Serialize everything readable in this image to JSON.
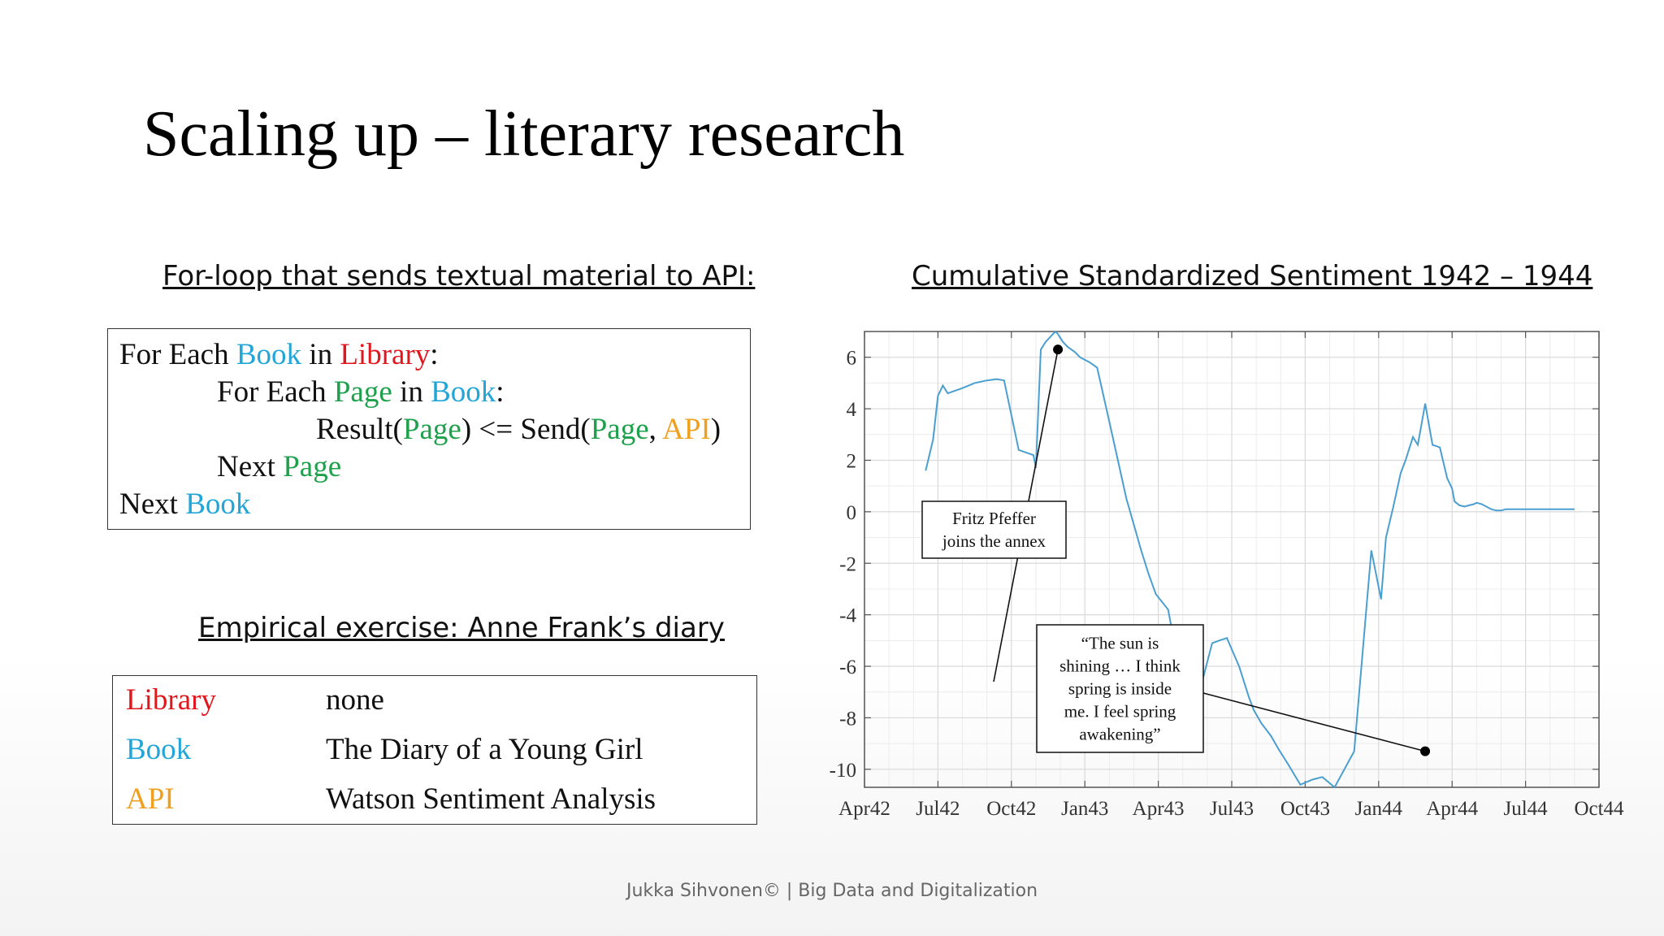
{
  "slide": {
    "title": "Scaling up – literary research",
    "footer": "Jukka Sihvonen© | Big Data and Digitalization"
  },
  "code_section": {
    "heading": "For-loop that sends textual material to API:",
    "line1": {
      "a": "For Each ",
      "b": "Book",
      "c": " in ",
      "d": "Library",
      "e": ":"
    },
    "line2": {
      "a": "For Each ",
      "b": "Page",
      "c": " in ",
      "d": "Book",
      "e": ":"
    },
    "line3": {
      "a": "Result(",
      "b": "Page",
      "c": ") <= Send(",
      "d": "Page",
      "e": ", ",
      "f": "API",
      "g": ")"
    },
    "line4": {
      "a": "Next ",
      "b": "Page"
    },
    "line5": {
      "a": "Next ",
      "b": "Book"
    }
  },
  "exercise_section": {
    "heading": "Empirical exercise: Anne Frank’s diary",
    "rows": [
      {
        "key": "Library",
        "value": "none",
        "color": "#e0171d"
      },
      {
        "key": "Book",
        "value": "The Diary of a Young Girl",
        "color": "#22a6d8"
      },
      {
        "key": "API",
        "value": "Watson Sentiment Analysis",
        "color": "#f0a020"
      }
    ]
  },
  "colors": {
    "blue": "#22a6d8",
    "red": "#e0171d",
    "green": "#1fa04c",
    "orange": "#f0a020",
    "line": "#4a9fd0"
  },
  "chart_data": {
    "type": "line",
    "title": "Cumulative Standardized Sentiment 1942 – 1944",
    "xlabel": "",
    "ylabel": "",
    "x_ticks": [
      "Apr42",
      "Jul42",
      "Oct42",
      "Jan43",
      "Apr43",
      "Jul43",
      "Oct43",
      "Jan44",
      "Apr44",
      "Jul44",
      "Oct44"
    ],
    "x_tick_positions": [
      0,
      3,
      6,
      9,
      12,
      15,
      18,
      21,
      24,
      27,
      30
    ],
    "y_ticks": [
      6,
      4,
      2,
      0,
      -2,
      -4,
      -6,
      -8,
      -10
    ],
    "xlim": [
      0,
      30
    ],
    "ylim": [
      -10.7,
      7
    ],
    "grid": true,
    "series": [
      {
        "x": [
          2.5,
          2.8,
          3.0,
          3.2,
          3.4,
          4.0,
          4.5,
          5.0,
          5.4,
          5.7,
          6.3,
          6.9,
          7.0,
          7.2,
          7.4,
          7.6,
          7.8,
          7.9,
          8.1,
          8.3,
          8.6,
          8.8,
          9.2,
          9.5,
          10.0,
          10.7,
          11.0,
          11.3,
          11.6,
          11.9,
          12.4,
          13.0,
          13.6,
          14.2,
          14.5,
          14.8,
          15.3,
          15.7,
          15.9,
          16.2,
          16.6,
          16.9,
          17.3,
          17.8,
          18.3,
          18.7,
          19.2,
          20.0,
          20.7,
          21.1,
          21.3,
          21.6,
          21.9,
          22.1,
          22.4,
          22.6,
          22.9,
          23.2,
          23.5,
          23.8,
          24.0,
          24.1,
          24.3,
          24.5,
          24.7,
          24.9,
          25.0,
          25.2,
          25.4,
          25.6,
          25.8,
          26.0,
          26.2,
          26.4,
          26.6,
          26.8,
          27.0,
          27.2,
          27.5,
          27.8,
          28.0,
          28.3,
          28.6,
          29.0
        ],
        "y": [
          1.6,
          2.8,
          4.5,
          4.9,
          4.6,
          4.8,
          5.0,
          5.1,
          5.15,
          5.1,
          2.4,
          2.2,
          1.7,
          6.3,
          6.6,
          6.8,
          7.0,
          6.9,
          6.6,
          6.4,
          6.2,
          6.0,
          5.8,
          5.6,
          3.5,
          0.5,
          -0.5,
          -1.5,
          -2.4,
          -3.2,
          -3.8,
          -6.8,
          -7.3,
          -5.1,
          -5.0,
          -4.9,
          -6.0,
          -7.2,
          -7.7,
          -8.2,
          -8.7,
          -9.2,
          -9.8,
          -10.6,
          -10.4,
          -10.3,
          -10.7,
          -9.3,
          -1.5,
          -3.4,
          -1.0,
          0.2,
          1.5,
          2.0,
          2.9,
          2.6,
          4.2,
          2.6,
          2.5,
          1.3,
          0.9,
          0.4,
          0.25,
          0.2,
          0.25,
          0.3,
          0.35,
          0.3,
          0.2,
          0.1,
          0.05,
          0.05,
          0.1,
          0.1,
          0.1,
          0.1,
          0.1,
          0.1,
          0.1,
          0.1,
          0.1,
          0.1,
          0.1,
          0.1
        ],
        "color": "#4a9fd0"
      }
    ],
    "annotations": [
      {
        "text": [
          "Fritz Pfeffer",
          "joins the annex"
        ],
        "point": {
          "x": 7.9,
          "y": 6.3
        }
      },
      {
        "text": [
          "“The sun is",
          "shining … I think",
          "spring is inside",
          "me. I feel spring",
          "awakening”"
        ],
        "point": {
          "x": 22.9,
          "y": -9.3
        }
      }
    ]
  }
}
